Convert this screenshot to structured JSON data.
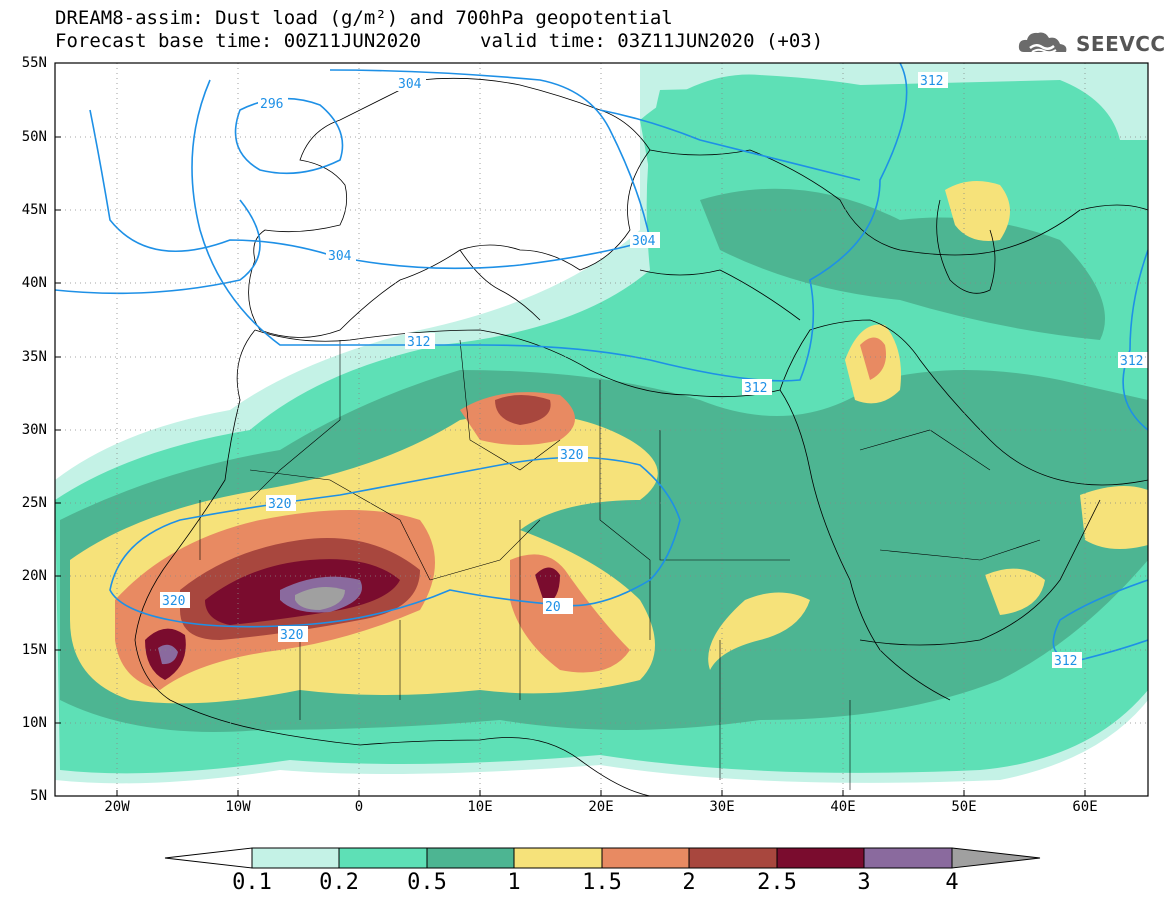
{
  "header": {
    "title": "DREAM8-assim: Dust load (g/m²) and 700hPa geopotential",
    "base_time": "Forecast base time: 00Z11JUN2020",
    "valid_time": "valid time: 03Z11JUN2020 (+03)"
  },
  "logo": {
    "text": "SEEVCCC",
    "icon": "cloud-logo-icon"
  },
  "map": {
    "lat_ticks": [
      "55N",
      "50N",
      "45N",
      "40N",
      "35N",
      "30N",
      "25N",
      "20N",
      "15N",
      "10N",
      "5N"
    ],
    "lon_ticks": [
      "20W",
      "10W",
      "0",
      "10E",
      "20E",
      "30E",
      "40E",
      "50E",
      "60E"
    ],
    "contour_labels": [
      "296",
      "304",
      "304",
      "304",
      "312",
      "312",
      "312",
      "312",
      "312",
      "320",
      "320",
      "320",
      "320",
      "20"
    ]
  },
  "colorbar": {
    "ticks": [
      "0.1",
      "0.2",
      "0.5",
      "1",
      "1.5",
      "2",
      "2.5",
      "3",
      "4"
    ],
    "colors": [
      "#c4f2e6",
      "#5ee0b6",
      "#4db592",
      "#f6e27a",
      "#e88a62",
      "#a8473e",
      "#7a0c2e",
      "#8a6a9e",
      "#a0a0a0"
    ]
  },
  "palette": {
    "light": "#c4f2e6",
    "green": "#5ee0b6",
    "dark_green": "#4db592",
    "yellow": "#f6e27a",
    "orange": "#e88a62",
    "brown": "#a8473e",
    "maroon": "#7a0c2e",
    "purple": "#8a6a9e",
    "gray": "#a0a0a0",
    "contour": "#1e90e6"
  }
}
